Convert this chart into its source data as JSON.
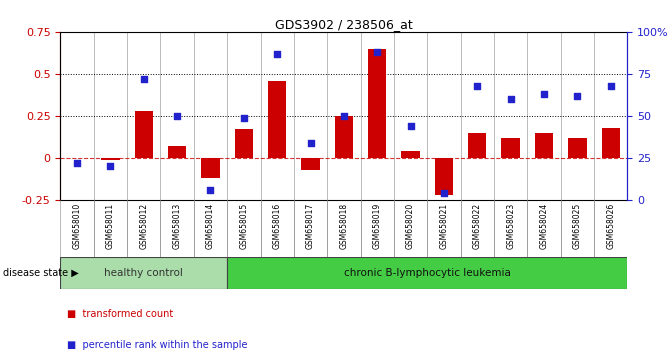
{
  "title": "GDS3902 / 238506_at",
  "samples": [
    "GSM658010",
    "GSM658011",
    "GSM658012",
    "GSM658013",
    "GSM658014",
    "GSM658015",
    "GSM658016",
    "GSM658017",
    "GSM658018",
    "GSM658019",
    "GSM658020",
    "GSM658021",
    "GSM658022",
    "GSM658023",
    "GSM658024",
    "GSM658025",
    "GSM658026"
  ],
  "transformed_count": [
    0.0,
    -0.01,
    0.28,
    0.07,
    -0.12,
    0.17,
    0.46,
    -0.07,
    0.25,
    0.65,
    0.04,
    -0.22,
    0.15,
    0.12,
    0.15,
    0.12,
    0.18
  ],
  "percentile_rank": [
    22,
    20,
    72,
    50,
    6,
    49,
    87,
    34,
    50,
    88,
    44,
    4,
    68,
    60,
    63,
    62,
    68
  ],
  "ylim_left": [
    -0.25,
    0.75
  ],
  "ylim_right": [
    0,
    100
  ],
  "yticks_left": [
    -0.25,
    0.0,
    0.25,
    0.5,
    0.75
  ],
  "ytick_labels_left": [
    "-0.25",
    "0",
    "0.25",
    "0.5",
    "0.75"
  ],
  "yticks_right": [
    0,
    25,
    50,
    75,
    100
  ],
  "ytick_labels_right": [
    "0",
    "25",
    "50",
    "75",
    "100%"
  ],
  "bar_color": "#cc0000",
  "dot_color": "#2222cc",
  "zero_line_color": "#cc0000",
  "dotted_line_color": "#000000",
  "healthy_control_count": 5,
  "healthy_color": "#aaddaa",
  "leukemia_color": "#44cc44",
  "group_labels": [
    "healthy control",
    "chronic B-lymphocytic leukemia"
  ],
  "legend_bar_label": "transformed count",
  "legend_dot_label": "percentile rank within the sample",
  "disease_state_label": "disease state",
  "bg_color": "#ffffff",
  "tick_area_bg": "#cccccc",
  "separator_color": "#888888"
}
